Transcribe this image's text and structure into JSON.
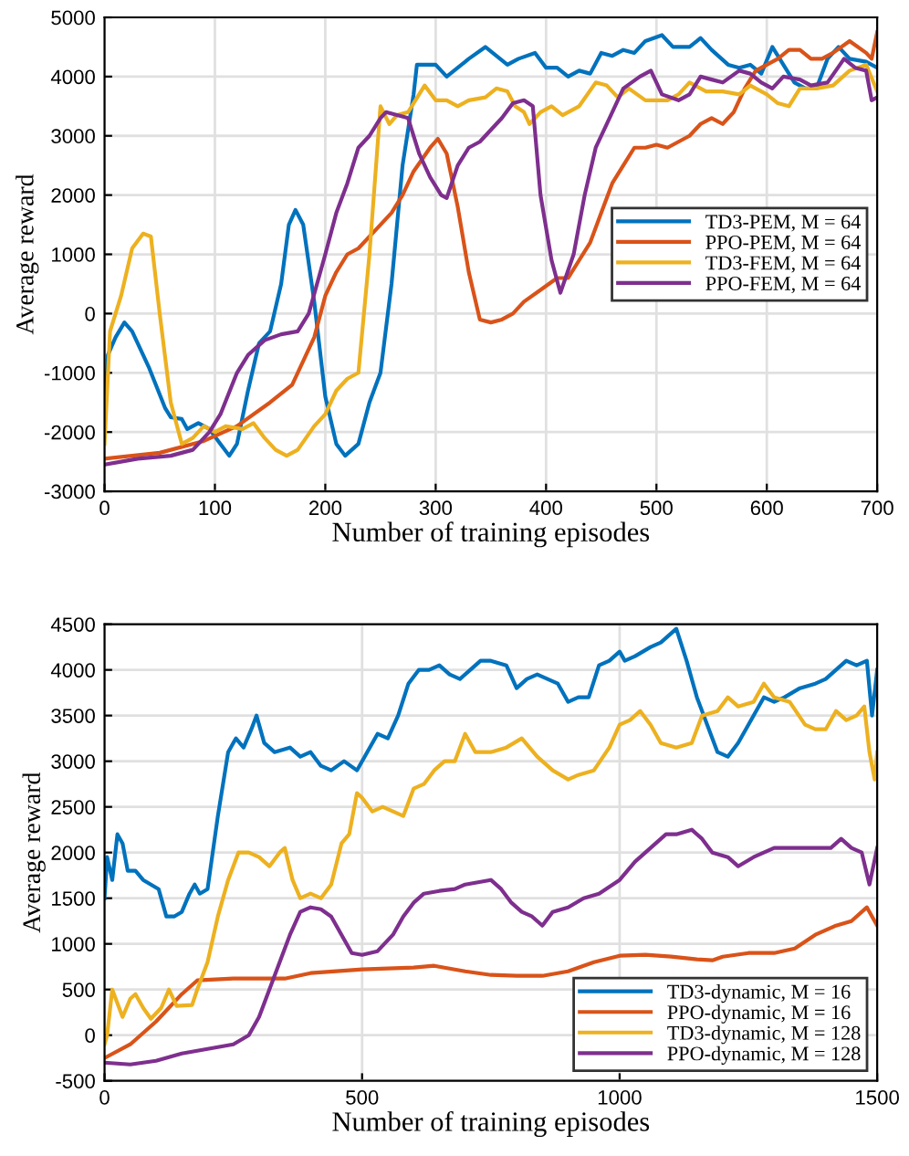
{
  "chart_data": [
    {
      "type": "line",
      "xlabel": "Number of training episodes",
      "ylabel": "Average reward",
      "xlim": [
        0,
        700
      ],
      "ylim": [
        -3000,
        5000
      ],
      "xticks": [
        0,
        100,
        200,
        300,
        400,
        500,
        600,
        700
      ],
      "yticks": [
        -3000,
        -2000,
        -1000,
        0,
        1000,
        2000,
        3000,
        4000,
        5000
      ],
      "grid": true,
      "legend": "right",
      "marker": "none",
      "line_style": "solid",
      "series": [
        {
          "name": "TD3-PEM, M = 64",
          "color": "#0072bd",
          "x": [
            0,
            3,
            10,
            18,
            25,
            40,
            55,
            60,
            70,
            75,
            85,
            95,
            105,
            113,
            120,
            130,
            140,
            150,
            160,
            167,
            173,
            180,
            190,
            200,
            210,
            218,
            230,
            240,
            250,
            260,
            270,
            280,
            283,
            290,
            300,
            310,
            320,
            330,
            345,
            355,
            365,
            375,
            390,
            400,
            410,
            420,
            430,
            440,
            450,
            460,
            470,
            480,
            490,
            505,
            515,
            530,
            540,
            550,
            565,
            575,
            585,
            595,
            605,
            615,
            625,
            635,
            645,
            655,
            665,
            675,
            690,
            700
          ],
          "values": [
            -1800,
            -700,
            -400,
            -150,
            -300,
            -900,
            -1600,
            -1750,
            -1780,
            -1950,
            -1850,
            -1950,
            -2200,
            -2400,
            -2200,
            -1300,
            -500,
            -300,
            500,
            1500,
            1750,
            1500,
            200,
            -1400,
            -2200,
            -2400,
            -2200,
            -1500,
            -1000,
            500,
            2500,
            3700,
            4200,
            4200,
            4200,
            4000,
            4150,
            4300,
            4500,
            4350,
            4200,
            4300,
            4400,
            4150,
            4150,
            4000,
            4100,
            4050,
            4400,
            4350,
            4450,
            4400,
            4600,
            4700,
            4500,
            4500,
            4650,
            4450,
            4200,
            4150,
            4200,
            4050,
            4500,
            4200,
            3900,
            3800,
            3800,
            4300,
            4500,
            4300,
            4250,
            4150
          ]
        },
        {
          "name": "PPO-PEM, M = 64",
          "color": "#d95319",
          "x": [
            0,
            50,
            90,
            120,
            150,
            170,
            190,
            200,
            210,
            220,
            230,
            245,
            260,
            270,
            280,
            295,
            302,
            310,
            320,
            330,
            340,
            350,
            360,
            370,
            380,
            395,
            410,
            420,
            430,
            440,
            450,
            460,
            470,
            480,
            490,
            500,
            510,
            520,
            530,
            540,
            550,
            560,
            570,
            580,
            590,
            600,
            610,
            620,
            630,
            640,
            650,
            660,
            675,
            690,
            695,
            700
          ],
          "values": [
            -2450,
            -2350,
            -2150,
            -1900,
            -1500,
            -1200,
            -400,
            300,
            700,
            1000,
            1100,
            1400,
            1700,
            2000,
            2400,
            2800,
            2950,
            2700,
            1800,
            700,
            -100,
            -150,
            -100,
            0,
            200,
            400,
            600,
            600,
            900,
            1200,
            1700,
            2200,
            2500,
            2800,
            2800,
            2850,
            2800,
            2900,
            3000,
            3200,
            3300,
            3200,
            3400,
            3800,
            4100,
            4200,
            4300,
            4450,
            4450,
            4300,
            4300,
            4400,
            4600,
            4400,
            4300,
            4750
          ]
        },
        {
          "name": "TD3-FEM, M = 64",
          "color": "#edb120",
          "x": [
            0,
            5,
            15,
            25,
            35,
            42,
            50,
            60,
            70,
            80,
            90,
            100,
            110,
            125,
            135,
            145,
            155,
            165,
            175,
            190,
            200,
            210,
            220,
            230,
            240,
            250,
            258,
            265,
            275,
            285,
            290,
            300,
            310,
            320,
            330,
            345,
            355,
            365,
            372,
            380,
            385,
            395,
            405,
            415,
            430,
            445,
            455,
            465,
            475,
            490,
            510,
            520,
            530,
            545,
            560,
            575,
            585,
            600,
            610,
            620,
            630,
            645,
            660,
            675,
            690,
            700
          ],
          "values": [
            -2200,
            -300,
            300,
            1100,
            1350,
            1300,
            0,
            -1500,
            -2200,
            -2100,
            -1900,
            -2000,
            -1900,
            -1950,
            -1850,
            -2100,
            -2300,
            -2400,
            -2300,
            -1900,
            -1700,
            -1300,
            -1100,
            -1000,
            1000,
            3500,
            3200,
            3350,
            3400,
            3700,
            3850,
            3600,
            3600,
            3500,
            3600,
            3650,
            3800,
            3750,
            3500,
            3400,
            3200,
            3400,
            3500,
            3350,
            3500,
            3900,
            3850,
            3650,
            3800,
            3600,
            3600,
            3700,
            3900,
            3750,
            3750,
            3700,
            3850,
            3700,
            3550,
            3500,
            3800,
            3800,
            3850,
            4100,
            4200,
            3750
          ]
        },
        {
          "name": "PPO-FEM, M = 64",
          "color": "#7e2f8e",
          "x": [
            0,
            30,
            60,
            80,
            95,
            105,
            120,
            130,
            145,
            160,
            175,
            185,
            200,
            210,
            220,
            230,
            240,
            250,
            255,
            265,
            275,
            285,
            295,
            305,
            310,
            320,
            330,
            340,
            350,
            360,
            370,
            380,
            388,
            395,
            405,
            413,
            425,
            435,
            445,
            455,
            470,
            485,
            495,
            505,
            520,
            530,
            540,
            550,
            560,
            575,
            585,
            595,
            605,
            615,
            630,
            640,
            655,
            670,
            680,
            690,
            695,
            700
          ],
          "values": [
            -2550,
            -2450,
            -2400,
            -2300,
            -2000,
            -1700,
            -1000,
            -700,
            -450,
            -350,
            -300,
            0,
            1000,
            1700,
            2200,
            2800,
            3000,
            3300,
            3400,
            3350,
            3300,
            2700,
            2300,
            2000,
            1950,
            2500,
            2800,
            2900,
            3100,
            3300,
            3550,
            3600,
            3500,
            2000,
            900,
            350,
            1000,
            2000,
            2800,
            3200,
            3800,
            4000,
            4100,
            3700,
            3600,
            3700,
            4000,
            3950,
            3900,
            4100,
            4050,
            3900,
            3800,
            4000,
            3950,
            3850,
            3900,
            4300,
            4150,
            4100,
            3600,
            3650
          ]
        }
      ]
    },
    {
      "type": "line",
      "xlabel": "Number of training episodes",
      "ylabel": "Average reward",
      "xlim": [
        0,
        1500
      ],
      "ylim": [
        -500,
        4500
      ],
      "xticks": [
        0,
        500,
        1000,
        1500
      ],
      "yticks": [
        -500,
        0,
        500,
        1000,
        1500,
        2000,
        2500,
        3000,
        3500,
        4000,
        4500
      ],
      "grid": true,
      "legend": "bottom right",
      "marker": "none",
      "line_style": "solid",
      "series": [
        {
          "name": "TD3-dynamic, M = 16",
          "color": "#0072bd",
          "x": [
            0,
            5,
            15,
            25,
            35,
            45,
            60,
            75,
            90,
            105,
            120,
            135,
            150,
            165,
            175,
            185,
            200,
            220,
            240,
            255,
            270,
            285,
            295,
            310,
            330,
            360,
            380,
            400,
            420,
            440,
            465,
            490,
            510,
            530,
            550,
            570,
            590,
            610,
            630,
            650,
            670,
            690,
            710,
            730,
            750,
            780,
            800,
            820,
            840,
            860,
            880,
            900,
            920,
            940,
            960,
            980,
            1000,
            1010,
            1030,
            1060,
            1080,
            1100,
            1110,
            1130,
            1150,
            1170,
            1190,
            1210,
            1230,
            1260,
            1280,
            1300,
            1320,
            1350,
            1380,
            1400,
            1420,
            1440,
            1460,
            1480,
            1490,
            1500
          ],
          "values": [
            1500,
            1950,
            1700,
            2200,
            2100,
            1800,
            1800,
            1700,
            1650,
            1600,
            1300,
            1300,
            1350,
            1550,
            1650,
            1550,
            1600,
            2400,
            3100,
            3250,
            3150,
            3350,
            3500,
            3200,
            3100,
            3150,
            3050,
            3100,
            2950,
            2900,
            3000,
            2900,
            3100,
            3300,
            3250,
            3500,
            3850,
            4000,
            4000,
            4050,
            3950,
            3900,
            4000,
            4100,
            4100,
            4050,
            3800,
            3900,
            3950,
            3900,
            3850,
            3650,
            3700,
            3700,
            4050,
            4100,
            4200,
            4100,
            4150,
            4250,
            4300,
            4400,
            4450,
            4100,
            3700,
            3400,
            3100,
            3050,
            3200,
            3500,
            3700,
            3650,
            3700,
            3800,
            3850,
            3900,
            4000,
            4100,
            4050,
            4100,
            3500,
            4000
          ]
        },
        {
          "name": "PPO-dynamic, M = 16",
          "color": "#d95319",
          "x": [
            0,
            50,
            100,
            150,
            180,
            250,
            350,
            400,
            500,
            600,
            640,
            700,
            750,
            800,
            850,
            900,
            950,
            1000,
            1050,
            1100,
            1150,
            1180,
            1200,
            1250,
            1300,
            1340,
            1380,
            1420,
            1450,
            1480,
            1500
          ],
          "values": [
            -250,
            -100,
            150,
            450,
            600,
            620,
            620,
            680,
            720,
            740,
            760,
            700,
            660,
            650,
            650,
            700,
            800,
            870,
            880,
            860,
            830,
            820,
            860,
            900,
            900,
            950,
            1100,
            1200,
            1250,
            1400,
            1200
          ]
        },
        {
          "name": "TD3-dynamic, M = 128",
          "color": "#edb120",
          "x": [
            0,
            5,
            15,
            25,
            35,
            50,
            60,
            75,
            90,
            110,
            125,
            140,
            170,
            180,
            200,
            220,
            240,
            260,
            280,
            300,
            320,
            340,
            350,
            365,
            380,
            400,
            420,
            440,
            460,
            475,
            490,
            500,
            520,
            540,
            560,
            580,
            600,
            620,
            640,
            660,
            680,
            700,
            720,
            750,
            780,
            810,
            840,
            870,
            900,
            920,
            950,
            980,
            1000,
            1020,
            1040,
            1060,
            1080,
            1110,
            1140,
            1160,
            1190,
            1210,
            1230,
            1260,
            1280,
            1300,
            1330,
            1360,
            1380,
            1400,
            1420,
            1440,
            1460,
            1475,
            1485,
            1495,
            1500
          ],
          "values": [
            -100,
            0,
            500,
            350,
            200,
            400,
            450,
            300,
            180,
            300,
            500,
            320,
            330,
            500,
            800,
            1300,
            1700,
            2000,
            2000,
            1950,
            1850,
            2000,
            2050,
            1700,
            1500,
            1550,
            1500,
            1650,
            2100,
            2200,
            2650,
            2600,
            2450,
            2500,
            2450,
            2400,
            2700,
            2750,
            2900,
            3000,
            3000,
            3300,
            3100,
            3100,
            3150,
            3250,
            3050,
            2900,
            2800,
            2850,
            2900,
            3150,
            3400,
            3450,
            3550,
            3400,
            3200,
            3150,
            3200,
            3500,
            3550,
            3700,
            3600,
            3650,
            3850,
            3700,
            3650,
            3400,
            3350,
            3350,
            3550,
            3450,
            3500,
            3600,
            3100,
            2800,
            3100
          ]
        },
        {
          "name": "PPO-dynamic, M = 128",
          "color": "#7e2f8e",
          "x": [
            0,
            50,
            100,
            150,
            200,
            250,
            280,
            300,
            320,
            340,
            360,
            380,
            400,
            420,
            440,
            460,
            480,
            500,
            530,
            560,
            580,
            600,
            620,
            650,
            680,
            700,
            730,
            750,
            770,
            790,
            810,
            830,
            850,
            870,
            900,
            930,
            960,
            1000,
            1030,
            1050,
            1070,
            1090,
            1110,
            1140,
            1160,
            1180,
            1210,
            1230,
            1260,
            1300,
            1340,
            1380,
            1410,
            1430,
            1450,
            1470,
            1485,
            1500
          ],
          "values": [
            -300,
            -320,
            -280,
            -200,
            -150,
            -100,
            0,
            200,
            500,
            800,
            1100,
            1350,
            1400,
            1380,
            1300,
            1100,
            900,
            880,
            920,
            1100,
            1300,
            1450,
            1550,
            1580,
            1600,
            1650,
            1680,
            1700,
            1600,
            1450,
            1350,
            1300,
            1200,
            1350,
            1400,
            1500,
            1550,
            1700,
            1900,
            2000,
            2100,
            2200,
            2200,
            2250,
            2150,
            2000,
            1950,
            1850,
            1950,
            2050,
            2050,
            2050,
            2050,
            2150,
            2050,
            2000,
            1650,
            2050
          ]
        }
      ]
    }
  ]
}
